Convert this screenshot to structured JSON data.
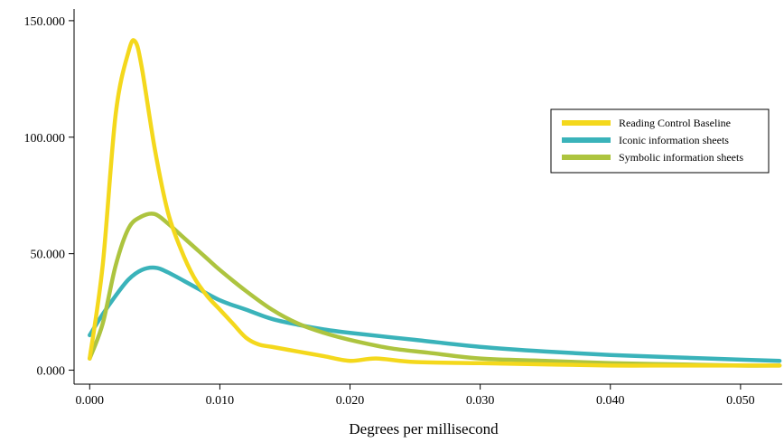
{
  "chart_data": {
    "type": "line",
    "title": "",
    "xlabel": "Degrees per millisecond",
    "ylabel": "",
    "xlim": [
      -0.0012,
      0.0532
    ],
    "ylim": [
      -6,
      155
    ],
    "x_ticks": [
      0.0,
      0.01,
      0.02,
      0.03,
      0.04,
      0.05
    ],
    "x_tick_labels": [
      "0.000",
      "0.010",
      "0.020",
      "0.030",
      "0.040",
      "0.050"
    ],
    "y_ticks": [
      0,
      50,
      100,
      150
    ],
    "y_tick_labels": [
      "0.000",
      "50.000",
      "100.000",
      "150.000"
    ],
    "grid": false,
    "legend_position": "upper-right",
    "series": [
      {
        "name": "Reading Control Baseline",
        "color": "#F4D81C",
        "x": [
          0.0,
          0.001,
          0.002,
          0.003,
          0.0035,
          0.004,
          0.005,
          0.006,
          0.007,
          0.008,
          0.009,
          0.01,
          0.011,
          0.012,
          0.013,
          0.014,
          0.016,
          0.018,
          0.02,
          0.022,
          0.025,
          0.03,
          0.035,
          0.04,
          0.045,
          0.05,
          0.053
        ],
        "y": [
          5,
          45,
          110,
          137,
          141,
          130,
          95,
          68,
          52,
          40,
          32,
          26,
          20,
          14,
          11,
          10,
          8,
          6,
          4,
          5,
          3.5,
          3,
          2.5,
          2,
          2,
          2,
          2
        ]
      },
      {
        "name": "Iconic information sheets",
        "color": "#3AB3BA",
        "x": [
          0.0,
          0.001,
          0.002,
          0.003,
          0.004,
          0.005,
          0.006,
          0.008,
          0.01,
          0.012,
          0.014,
          0.016,
          0.018,
          0.02,
          0.025,
          0.03,
          0.035,
          0.04,
          0.045,
          0.05,
          0.053
        ],
        "y": [
          15,
          24,
          32,
          39,
          43,
          44,
          42,
          36,
          30,
          26,
          22,
          19.5,
          17.5,
          16,
          13,
          10,
          8,
          6.5,
          5.5,
          4.5,
          4
        ]
      },
      {
        "name": "Symbolic information sheets",
        "color": "#ADC43F",
        "x": [
          0.0,
          0.001,
          0.002,
          0.003,
          0.004,
          0.005,
          0.006,
          0.007,
          0.008,
          0.009,
          0.01,
          0.012,
          0.014,
          0.016,
          0.018,
          0.02,
          0.023,
          0.026,
          0.03,
          0.035,
          0.04,
          0.045,
          0.05,
          0.053
        ],
        "y": [
          5,
          20,
          45,
          61,
          66,
          67,
          63,
          58,
          53,
          48,
          43,
          34,
          26,
          20,
          16,
          13,
          9.5,
          7.5,
          5,
          4,
          3,
          2.5,
          2,
          2
        ]
      }
    ]
  }
}
